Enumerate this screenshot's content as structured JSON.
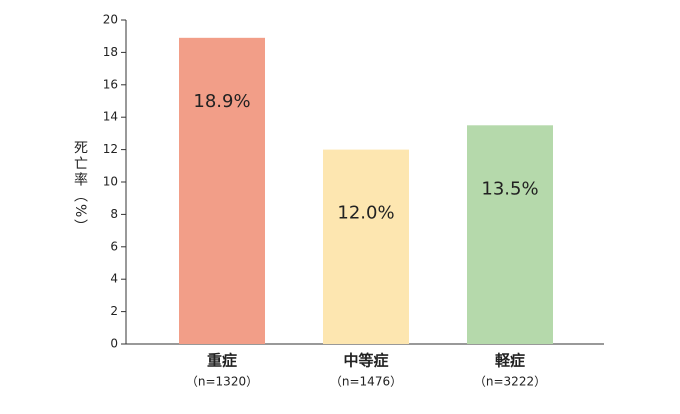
{
  "chart_data": {
    "type": "bar",
    "y_label": "死亡率（%）",
    "categories": [
      "重症",
      "中等症",
      "軽症"
    ],
    "category_sublabels": [
      "（n=1320）",
      "（n=1476）",
      "（n=3222）"
    ],
    "values": [
      18.9,
      12.0,
      13.5
    ],
    "value_labels": [
      "18.9%",
      "12.0%",
      "13.5%"
    ],
    "colors": [
      "#f29e88",
      "#fde6b0",
      "#b5d9ab"
    ],
    "ylim": [
      0,
      20
    ],
    "yticks": [
      0,
      2,
      4,
      6,
      8,
      10,
      12,
      14,
      16,
      18,
      20
    ],
    "grid": false
  }
}
